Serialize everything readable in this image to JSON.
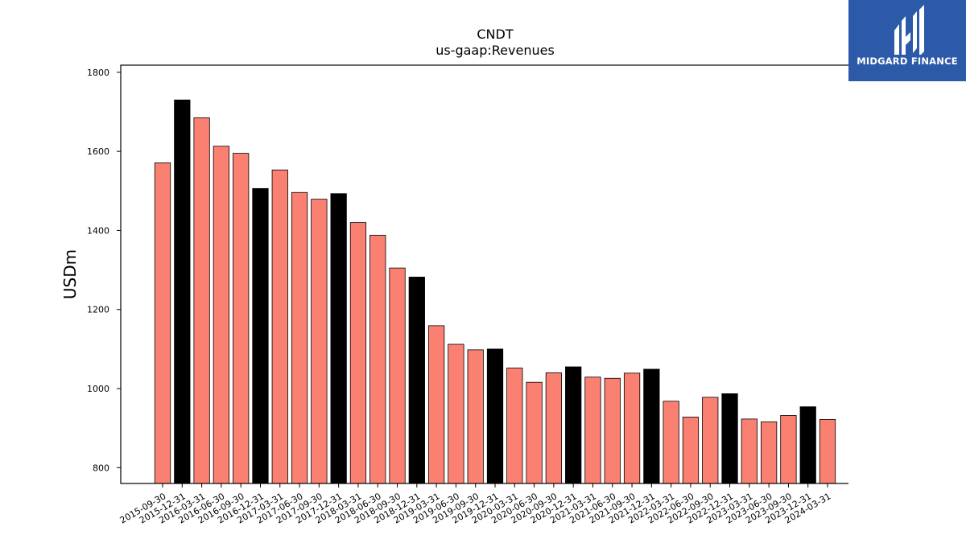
{
  "brand": {
    "name": "MIDGARD FINANCE",
    "background": "#2d5aa8"
  },
  "chart_data": {
    "type": "bar",
    "title": "CNDT",
    "subtitle": "us-gaap:Revenues",
    "xlabel": "",
    "ylabel": "USDm",
    "ylim": [
      760,
      1818
    ],
    "yticks": [
      800,
      1000,
      1200,
      1400,
      1600,
      1800
    ],
    "grid": false,
    "colors": {
      "quarter": "#fa8072",
      "year_end": "#000000",
      "edge": "#000000"
    },
    "categories": [
      "2015-09-30",
      "2015-12-31",
      "2016-03-31",
      "2016-06-30",
      "2016-09-30",
      "2016-12-31",
      "2017-03-31",
      "2017-06-30",
      "2017-09-30",
      "2017-12-31",
      "2018-03-31",
      "2018-06-30",
      "2018-09-30",
      "2018-12-31",
      "2019-03-31",
      "2019-06-30",
      "2019-09-30",
      "2019-12-31",
      "2020-03-31",
      "2020-06-30",
      "2020-09-30",
      "2020-12-31",
      "2021-03-31",
      "2021-06-30",
      "2021-09-30",
      "2021-12-31",
      "2022-03-31",
      "2022-06-30",
      "2022-09-30",
      "2022-12-31",
      "2023-03-31",
      "2023-06-30",
      "2023-09-30",
      "2023-12-31",
      "2024-03-31"
    ],
    "values": [
      1571,
      1730,
      1685,
      1613,
      1595,
      1506,
      1553,
      1496,
      1479,
      1493,
      1420,
      1388,
      1305,
      1282,
      1159,
      1112,
      1098,
      1100,
      1052,
      1016,
      1040,
      1055,
      1029,
      1026,
      1039,
      1049,
      968,
      928,
      978,
      987,
      923,
      916,
      932,
      954,
      922
    ],
    "year_end": [
      false,
      true,
      false,
      false,
      false,
      true,
      false,
      false,
      false,
      true,
      false,
      false,
      false,
      true,
      false,
      false,
      false,
      true,
      false,
      false,
      false,
      true,
      false,
      false,
      false,
      true,
      false,
      false,
      false,
      true,
      false,
      false,
      false,
      true,
      false
    ]
  }
}
